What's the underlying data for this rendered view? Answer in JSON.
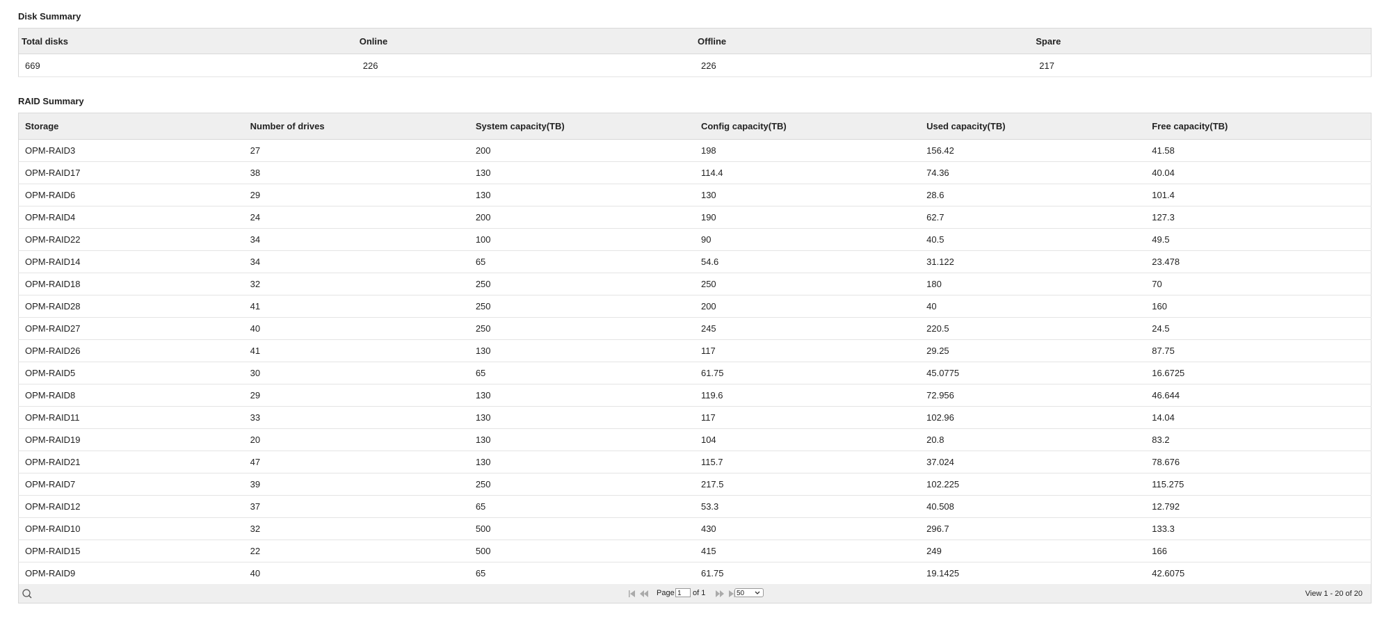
{
  "disk_summary": {
    "title": "Disk Summary",
    "headers": [
      "Total disks",
      "Online",
      "Offline",
      "Spare"
    ],
    "values": [
      "669",
      "226",
      "226",
      "217"
    ]
  },
  "raid_summary": {
    "title": "RAID Summary",
    "headers": [
      "Storage",
      "Number of drives",
      "System capacity(TB)",
      "Config capacity(TB)",
      "Used capacity(TB)",
      "Free capacity(TB)"
    ],
    "rows": [
      [
        "OPM-RAID3",
        "27",
        "200",
        "198",
        "156.42",
        "41.58"
      ],
      [
        "OPM-RAID17",
        "38",
        "130",
        "114.4",
        "74.36",
        "40.04"
      ],
      [
        "OPM-RAID6",
        "29",
        "130",
        "130",
        "28.6",
        "101.4"
      ],
      [
        "OPM-RAID4",
        "24",
        "200",
        "190",
        "62.7",
        "127.3"
      ],
      [
        "OPM-RAID22",
        "34",
        "100",
        "90",
        "40.5",
        "49.5"
      ],
      [
        "OPM-RAID14",
        "34",
        "65",
        "54.6",
        "31.122",
        "23.478"
      ],
      [
        "OPM-RAID18",
        "32",
        "250",
        "250",
        "180",
        "70"
      ],
      [
        "OPM-RAID28",
        "41",
        "250",
        "200",
        "40",
        "160"
      ],
      [
        "OPM-RAID27",
        "40",
        "250",
        "245",
        "220.5",
        "24.5"
      ],
      [
        "OPM-RAID26",
        "41",
        "130",
        "117",
        "29.25",
        "87.75"
      ],
      [
        "OPM-RAID5",
        "30",
        "65",
        "61.75",
        "45.0775",
        "16.6725"
      ],
      [
        "OPM-RAID8",
        "29",
        "130",
        "119.6",
        "72.956",
        "46.644"
      ],
      [
        "OPM-RAID11",
        "33",
        "130",
        "117",
        "102.96",
        "14.04"
      ],
      [
        "OPM-RAID19",
        "20",
        "130",
        "104",
        "20.8",
        "83.2"
      ],
      [
        "OPM-RAID21",
        "47",
        "130",
        "115.7",
        "37.024",
        "78.676"
      ],
      [
        "OPM-RAID7",
        "39",
        "250",
        "217.5",
        "102.225",
        "115.275"
      ],
      [
        "OPM-RAID12",
        "37",
        "65",
        "53.3",
        "40.508",
        "12.792"
      ],
      [
        "OPM-RAID10",
        "32",
        "500",
        "430",
        "296.7",
        "133.3"
      ],
      [
        "OPM-RAID15",
        "22",
        "500",
        "415",
        "249",
        "166"
      ],
      [
        "OPM-RAID9",
        "40",
        "65",
        "61.75",
        "19.1425",
        "42.6075"
      ]
    ]
  },
  "pager": {
    "page_label": "Page",
    "page": "1",
    "of_label": "of 1",
    "page_size": "50",
    "view_text": "View 1 - 20 of 20"
  }
}
